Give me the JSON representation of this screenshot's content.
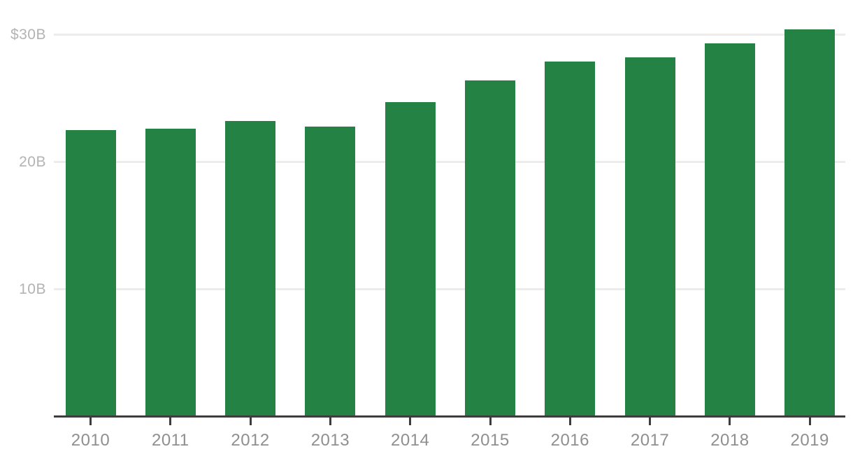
{
  "chart_data": {
    "type": "bar",
    "title": "",
    "xlabel": "",
    "ylabel": "",
    "categories": [
      "2010",
      "2011",
      "2012",
      "2013",
      "2014",
      "2015",
      "2016",
      "2017",
      "2018",
      "2019"
    ],
    "values": [
      22.5,
      22.6,
      23.2,
      22.8,
      24.7,
      26.4,
      27.9,
      28.2,
      29.3,
      30.4
    ],
    "unit": "billions USD",
    "ylim": [
      0,
      31
    ],
    "y_gridlines": [
      {
        "value": 30,
        "label": "$30B"
      },
      {
        "value": 20,
        "label": "20B"
      },
      {
        "value": 10,
        "label": "10B"
      }
    ],
    "grid": true,
    "legend_position": "none",
    "colors": {
      "bar": "#248245",
      "axis": "#3d3d3d",
      "gridline": "#ececec",
      "x_tick_label": "#8f8f8f",
      "y_tick_label": "#b3b3b3",
      "background": "#ffffff"
    }
  }
}
